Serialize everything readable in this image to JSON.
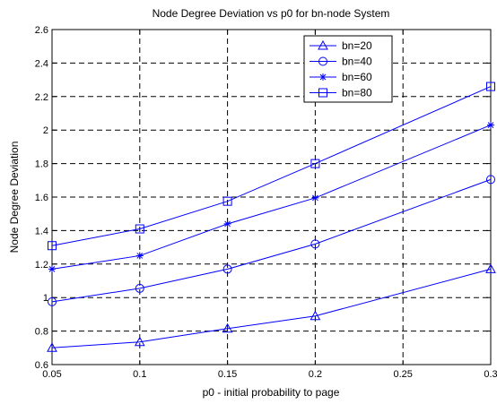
{
  "chart_data": {
    "type": "line",
    "title": "Node Degree Deviation vs p0 for bn-node System",
    "xlabel": "p0 - initial probability to page",
    "ylabel": "Node Degree Deviation",
    "xlim": [
      0.05,
      0.3
    ],
    "ylim": [
      0.6,
      2.6
    ],
    "xticks": [
      "0.05",
      "0.1",
      "0.15",
      "0.2",
      "0.25",
      "0.3"
    ],
    "yticks": [
      "0.6",
      "0.8",
      "1",
      "1.2",
      "1.4",
      "1.6",
      "1.8",
      "2",
      "2.2",
      "2.4",
      "2.6"
    ],
    "grid": true,
    "legend_position": "top-right",
    "line_color": "#0000ff",
    "x": [
      0.05,
      0.1,
      0.15,
      0.2,
      0.3
    ],
    "series": [
      {
        "name": "bn=20",
        "marker": "triangle",
        "values": [
          0.7,
          0.735,
          0.815,
          0.89,
          1.17
        ]
      },
      {
        "name": "bn=40",
        "marker": "circle",
        "values": [
          0.975,
          1.055,
          1.17,
          1.32,
          1.705
        ]
      },
      {
        "name": "bn=60",
        "marker": "star",
        "values": [
          1.17,
          1.25,
          1.44,
          1.595,
          2.03
        ]
      },
      {
        "name": "bn=80",
        "marker": "square",
        "values": [
          1.31,
          1.41,
          1.575,
          1.8,
          2.26
        ]
      }
    ]
  }
}
